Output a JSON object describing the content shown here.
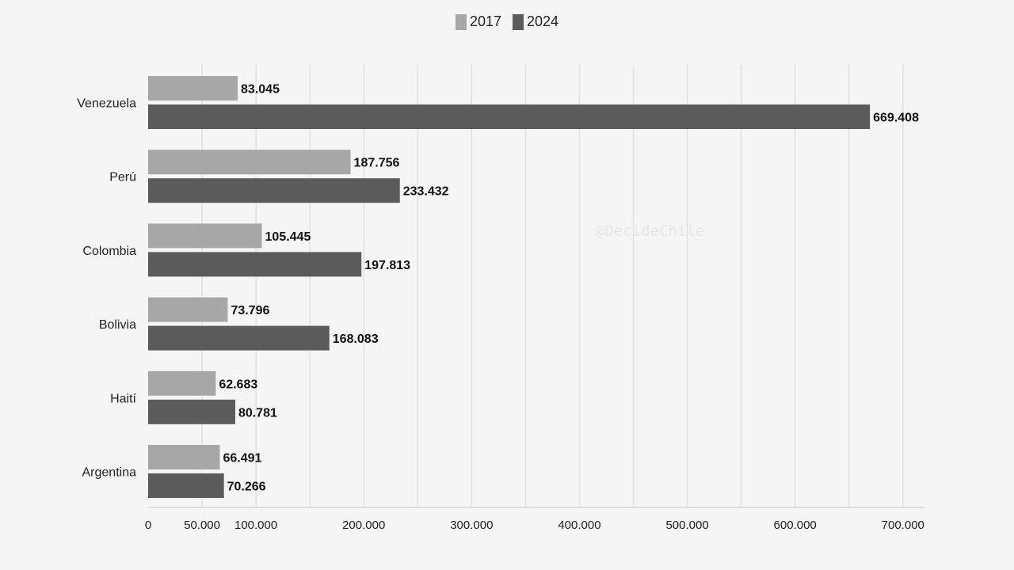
{
  "chart_data": {
    "type": "bar",
    "orientation": "horizontal",
    "categories": [
      "Venezuela",
      "Perú",
      "Colombia",
      "Bolivia",
      "Haití",
      "Argentina"
    ],
    "series": [
      {
        "name": "2017",
        "color": "#a7a7a7",
        "values": [
          83045,
          187756,
          105445,
          73796,
          62683,
          66491
        ],
        "labels": [
          "83.045",
          "187.756",
          "105.445",
          "73.796",
          "62.683",
          "66.491"
        ]
      },
      {
        "name": "2024",
        "color": "#5b5b5b",
        "values": [
          669408,
          233432,
          197813,
          168083,
          80781,
          70266
        ],
        "labels": [
          "669.408",
          "233.432",
          "197.813",
          "168.083",
          "80.781",
          "70.266"
        ]
      }
    ],
    "xlim": [
      0,
      720000
    ],
    "x_ticks": [
      0,
      50000,
      100000,
      200000,
      300000,
      400000,
      500000,
      600000,
      700000
    ],
    "x_tick_labels": [
      "0",
      "50.000",
      "100.000",
      "200.000",
      "300.000",
      "400.000",
      "500.000",
      "600.000",
      "700.000"
    ],
    "grid_values": [
      50000,
      100000,
      150000,
      200000,
      250000,
      300000,
      350000,
      400000,
      450000,
      500000,
      550000,
      600000,
      650000,
      700000
    ],
    "grid": true,
    "legend_placement": "top-center",
    "title": "",
    "xlabel": "",
    "ylabel": ""
  },
  "watermark": "@DecideChile",
  "colors": {
    "background": "#f5f5f5",
    "grid": "#e0e0e0"
  }
}
